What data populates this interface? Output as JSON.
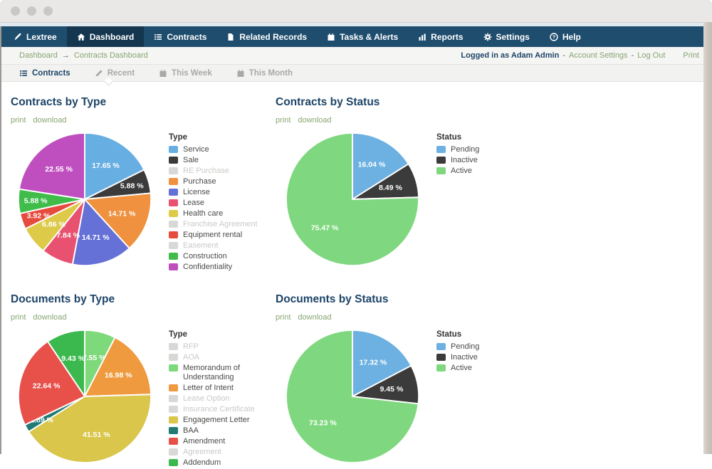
{
  "window": {
    "control_dots": 3
  },
  "theme": {
    "nav_bg": "#1f4d6e",
    "nav_active_bg": "#14374f",
    "link_green": "#87a571",
    "title_navy": "#1c4468",
    "chrome_bg": "#e9e8e6",
    "breadcrumb_bg": "#f5f5f3",
    "tab_bar_bg": "#f2f2f0",
    "disabled_legend": "#c9c9c7",
    "pie_label_color": "#ffffff"
  },
  "nav": {
    "items": [
      {
        "label": "Lextree",
        "icon": "pen-icon",
        "active": false
      },
      {
        "label": "Dashboard",
        "icon": "home-icon",
        "active": true
      },
      {
        "label": "Contracts",
        "icon": "list-icon",
        "active": false
      },
      {
        "label": "Related Records",
        "icon": "file-icon",
        "active": false
      },
      {
        "label": "Tasks & Alerts",
        "icon": "calendar-icon",
        "active": false
      },
      {
        "label": "Reports",
        "icon": "bar-chart-icon",
        "active": false
      },
      {
        "label": "Settings",
        "icon": "gear-icon",
        "active": false
      },
      {
        "label": "Help",
        "icon": "help-icon",
        "active": false
      }
    ]
  },
  "breadcrumb": {
    "items": [
      "Dashboard",
      "Contracts Dashboard"
    ],
    "separator": "→"
  },
  "session": {
    "logged_in_as": "Logged in as Adam Admin",
    "account_settings": "Account Settings",
    "log_out": "Log Out",
    "separator": "-",
    "print": "Print"
  },
  "tabs": [
    {
      "label": "Contracts",
      "icon": "list-icon",
      "active": true
    },
    {
      "label": "Recent",
      "icon": "pencil-icon",
      "active": false
    },
    {
      "label": "This Week",
      "icon": "calendar-icon",
      "active": false
    },
    {
      "label": "This Month",
      "icon": "calendar-icon",
      "active": false
    }
  ],
  "chart_links": [
    "print",
    "download"
  ],
  "chart_data": [
    {
      "type": "pie",
      "title": "Contracts by Type",
      "legend_title": "Type",
      "legend_position": "right",
      "label_format": "percent",
      "start_angle": "top",
      "direction": "clockwise",
      "slices": [
        {
          "label": "Service",
          "value": 17.65,
          "color": "#67aee3"
        },
        {
          "label": "Sale",
          "value": 5.88,
          "color": "#3b3b3b"
        },
        {
          "label": "RE Purchase",
          "value": 0,
          "color": "#d8d8d6",
          "disabled": true
        },
        {
          "label": "Purchase",
          "value": 14.71,
          "color": "#ef913e"
        },
        {
          "label": "License",
          "value": 14.71,
          "color": "#6671d8"
        },
        {
          "label": "Lease",
          "value": 7.84,
          "color": "#e8516f"
        },
        {
          "label": "Health care",
          "value": 6.86,
          "color": "#ddca49"
        },
        {
          "label": "Franchise Agreement",
          "value": 0,
          "color": "#d8d8d6",
          "disabled": true
        },
        {
          "label": "Equipment rental",
          "value": 3.92,
          "color": "#e64c3e"
        },
        {
          "label": "Easement",
          "value": 0,
          "color": "#d8d8d6",
          "disabled": true
        },
        {
          "label": "Construction",
          "value": 5.88,
          "color": "#3fbc4a"
        },
        {
          "label": "Confidentiality",
          "value": 22.55,
          "color": "#bf4fbf"
        }
      ]
    },
    {
      "type": "pie",
      "title": "Contracts by Status",
      "legend_title": "Status",
      "legend_position": "right",
      "label_format": "percent",
      "start_angle": "top",
      "direction": "clockwise",
      "slices": [
        {
          "label": "Pending",
          "value": 16.04,
          "color": "#6cb1e1"
        },
        {
          "label": "Inactive",
          "value": 8.49,
          "color": "#3b3b3b"
        },
        {
          "label": "Active",
          "value": 75.47,
          "color": "#7fd87f"
        }
      ]
    },
    {
      "type": "pie",
      "title": "Documents by Type",
      "legend_title": "Type",
      "legend_position": "right",
      "label_format": "percent",
      "start_angle": "top",
      "direction": "clockwise",
      "slices": [
        {
          "label": "RFP",
          "value": 0,
          "color": "#d8d8d6",
          "disabled": true
        },
        {
          "label": "AOA",
          "value": 0,
          "color": "#d8d8d6",
          "disabled": true
        },
        {
          "label": "Memorandum of Understanding",
          "value": 7.55,
          "color": "#7ed97b"
        },
        {
          "label": "Letter of Intent",
          "value": 16.98,
          "color": "#ef9a3e"
        },
        {
          "label": "Lease Option",
          "value": 0,
          "color": "#d8d8d6",
          "disabled": true
        },
        {
          "label": "Insurance Certificate",
          "value": 0,
          "color": "#d8d8d6",
          "disabled": true
        },
        {
          "label": "Engagement Letter",
          "value": 41.51,
          "color": "#d9c64b"
        },
        {
          "label": "BAA",
          "value": 1.89,
          "color": "#217a74"
        },
        {
          "label": "Amendment",
          "value": 22.64,
          "color": "#e8504a"
        },
        {
          "label": "Agreement",
          "value": 0,
          "color": "#d8d8d6",
          "disabled": true
        },
        {
          "label": "Addendum",
          "value": 9.43,
          "color": "#3cb94e"
        }
      ]
    },
    {
      "type": "pie",
      "title": "Documents by Status",
      "legend_title": "Status",
      "legend_position": "right",
      "label_format": "percent",
      "start_angle": "top",
      "direction": "clockwise",
      "slices": [
        {
          "label": "Pending",
          "value": 17.32,
          "color": "#6cb1e1"
        },
        {
          "label": "Inactive",
          "value": 9.45,
          "color": "#3b3b3b"
        },
        {
          "label": "Active",
          "value": 73.23,
          "color": "#7fd87f"
        }
      ]
    }
  ]
}
